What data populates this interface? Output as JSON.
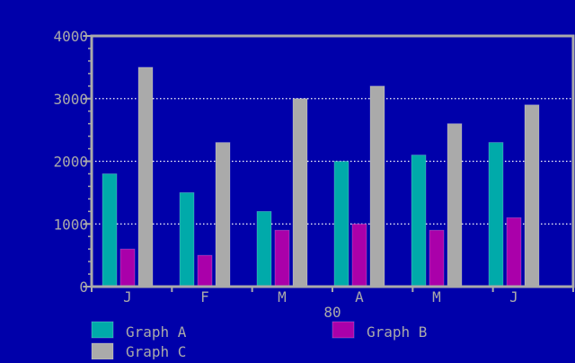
{
  "colors": {
    "background": "#0000aa",
    "axis": "#aaaaaa",
    "text": "#aaaaaa",
    "grid": "#ffffff",
    "series_a": "#00aaaa",
    "series_b": "#aa00aa",
    "series_c": "#aaaaaa"
  },
  "chart_data": {
    "type": "bar",
    "title": "",
    "xlabel": "80",
    "ylabel": "",
    "categories": [
      "J",
      "F",
      "M",
      "A",
      "M",
      "J"
    ],
    "series": [
      {
        "name": "Graph A",
        "color": "#00aaaa",
        "values": [
          1800,
          1500,
          1200,
          2000,
          2100,
          2300
        ]
      },
      {
        "name": "Graph B",
        "color": "#aa00aa",
        "values": [
          600,
          500,
          900,
          1000,
          900,
          1100
        ]
      },
      {
        "name": "Graph C",
        "color": "#aaaaaa",
        "values": [
          3500,
          2300,
          3000,
          3200,
          2600,
          2900
        ]
      }
    ],
    "ylim": [
      0,
      4000
    ],
    "yticks": [
      0,
      1000,
      2000,
      3000,
      4000
    ],
    "ytick_labels": [
      "0",
      "1000",
      "2000",
      "3000",
      "4000"
    ],
    "grid": true,
    "legend_position": "bottom"
  }
}
